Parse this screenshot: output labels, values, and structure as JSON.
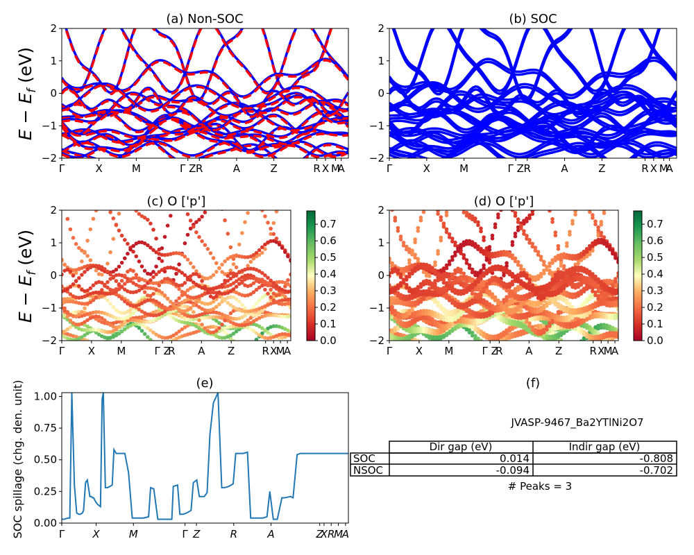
{
  "panels": {
    "a": {
      "title": "(a) Non-SOC"
    },
    "b": {
      "title": "(b) SOC"
    },
    "c": {
      "title": "(c)  O ['p']"
    },
    "d": {
      "title": "(d) O ['p']"
    },
    "e": {
      "title": "(e)"
    },
    "f": {
      "title": "(f)"
    }
  },
  "band_ylabel": "E − E_f (eV)",
  "band_ylabel_main": "E − E",
  "band_ylabel_sub": "f",
  "band_ylabel_unit": " (eV)",
  "band_ylim": [
    -2,
    2
  ],
  "band_yticks": [
    "2",
    "1",
    "0",
    "−1",
    "−2"
  ],
  "kpath_ab": [
    "Γ",
    "X",
    "M",
    "Γ Z",
    "R",
    "A",
    "Z",
    "R",
    "X",
    "M",
    "A"
  ],
  "kpath_cd": [
    "Γ",
    "X",
    "M",
    "Γ Z",
    "R",
    "A",
    "Z",
    "R",
    "X",
    "M",
    "A"
  ],
  "kpath_e": [
    "Γ",
    "X",
    "M",
    "Γ",
    "Z",
    "R",
    "A",
    "Z",
    "X",
    "R",
    "M",
    "A"
  ],
  "colorbar": {
    "ticks": [
      "0.7",
      "0.6",
      "0.5",
      "0.4",
      "0.3",
      "0.2",
      "0.1",
      "0.0"
    ],
    "range": [
      0,
      0.78
    ],
    "colormap": "RdYlGn"
  },
  "colors": {
    "non_soc_solid": "#0000ff",
    "non_soc_dashed": "#ff0000",
    "soc": "#0000ff",
    "spillage_line": "#1f77b4"
  },
  "spillage_ylabel": "SOC spillage (chg. den. unit)",
  "spillage_yticks": [
    "1.00",
    "0.75",
    "0.50",
    "0.25",
    "0.00"
  ],
  "material_id": "JVASP-9467_Ba2YTlNi2O7",
  "gap_table": {
    "col_headers": [
      "Dir gap (eV)",
      "Indir gap (eV)"
    ],
    "rows": [
      {
        "label": "SOC",
        "dir": "0.014",
        "indir": "-0.808"
      },
      {
        "label": "NSOC",
        "dir": "-0.094",
        "indir": "-0.702"
      }
    ]
  },
  "peaks_text": "# Peaks = 3",
  "chart_data": [
    {
      "type": "line",
      "title": "(e)",
      "ylabel": "SOC spillage (chg. den. unit)",
      "ylim": [
        0,
        1.03
      ],
      "x_tick_labels": [
        "Γ",
        "X",
        "M",
        "Γ",
        "Z",
        "R",
        "A",
        "Z",
        "X",
        "R",
        "M",
        "A"
      ],
      "x": [
        0,
        0.8,
        2.2,
        2.8,
        3.5,
        4.4,
        5.2,
        5.9,
        6.5,
        7.2,
        7.6,
        8.3,
        8.9,
        9.8,
        10.4,
        10.7,
        11.1,
        11.8,
        12.4,
        13.5,
        14.1,
        14.5,
        15.2,
        16.0,
        16.8,
        17.6,
        18.2,
        19.0,
        20.0,
        21.4,
        22.0,
        23.3,
        24.6,
        25.4,
        26.3,
        26.7,
        27.5,
        28.5,
        30.3,
        31.0,
        32.1,
        33.5,
        34.2,
        35.0,
        36.0,
        36.8,
        38.4,
        38.9,
        40.4,
        41.2,
        42.4,
        43.6,
        45.1,
        45.9,
        47.1,
        48.0,
        49.7,
        50.7,
        51.7,
        52.9,
        54.5,
        55.8,
        56.8,
        58.3,
        59.8,
        60.7,
        62.4,
        63.3,
        64.8,
        65.9,
        67.0,
        68.0,
        69.6,
        70.1,
        71.6,
        72.6,
        73.8,
        74.8,
        75.2,
        76.8,
        77.9,
        79.8,
        80.7,
        82.1,
        83.2,
        83.9,
        85.4,
        86.7,
        88.0,
        88.5,
        89.6,
        91.1,
        92.4,
        93.0,
        94.1,
        95.4,
        96.2,
        97.0,
        98.3,
        100.0
      ],
      "y": [
        0.03,
        0.03,
        0.04,
        0.04,
        1.03,
        0.3,
        0.08,
        0.07,
        0.07,
        0.08,
        0.1,
        0.32,
        0.34,
        0.21,
        0.21,
        0.2,
        0.2,
        0.17,
        0.15,
        0.13,
        0.98,
        1.03,
        0.28,
        0.28,
        0.29,
        0.3,
        0.58,
        0.55,
        0.55,
        0.55,
        0.55,
        0.4,
        0.04,
        0.04,
        0.04,
        0.04,
        0.04,
        0.04,
        0.05,
        0.28,
        0.27,
        0.03,
        0.03,
        0.03,
        0.03,
        0.03,
        0.03,
        0.29,
        0.3,
        0.07,
        0.07,
        0.08,
        0.1,
        0.32,
        0.34,
        0.21,
        0.21,
        0.24,
        0.7,
        0.95,
        1.03,
        0.28,
        0.28,
        0.29,
        0.31,
        0.55,
        0.55,
        0.55,
        0.56,
        0.04,
        0.04,
        0.04,
        0.04,
        0.04,
        0.05,
        0.25,
        0.03,
        0.03,
        0.03,
        0.2,
        0.2,
        0.21,
        0.2,
        0.54,
        0.55,
        0.55,
        0.55,
        0.55,
        0.55,
        0.55,
        0.55,
        0.55,
        0.55,
        0.55,
        0.55,
        0.55,
        0.55,
        0.55,
        0.55,
        0.55
      ],
      "xlim": [
        0,
        100
      ],
      "grid": false
    },
    {
      "type": "table",
      "title": "(f)",
      "columns": [
        "",
        "Dir gap (eV)",
        "Indir gap (eV)"
      ],
      "rows": [
        [
          "SOC",
          "0.014",
          "-0.808"
        ],
        [
          "NSOC",
          "-0.094",
          "-0.702"
        ]
      ]
    }
  ]
}
